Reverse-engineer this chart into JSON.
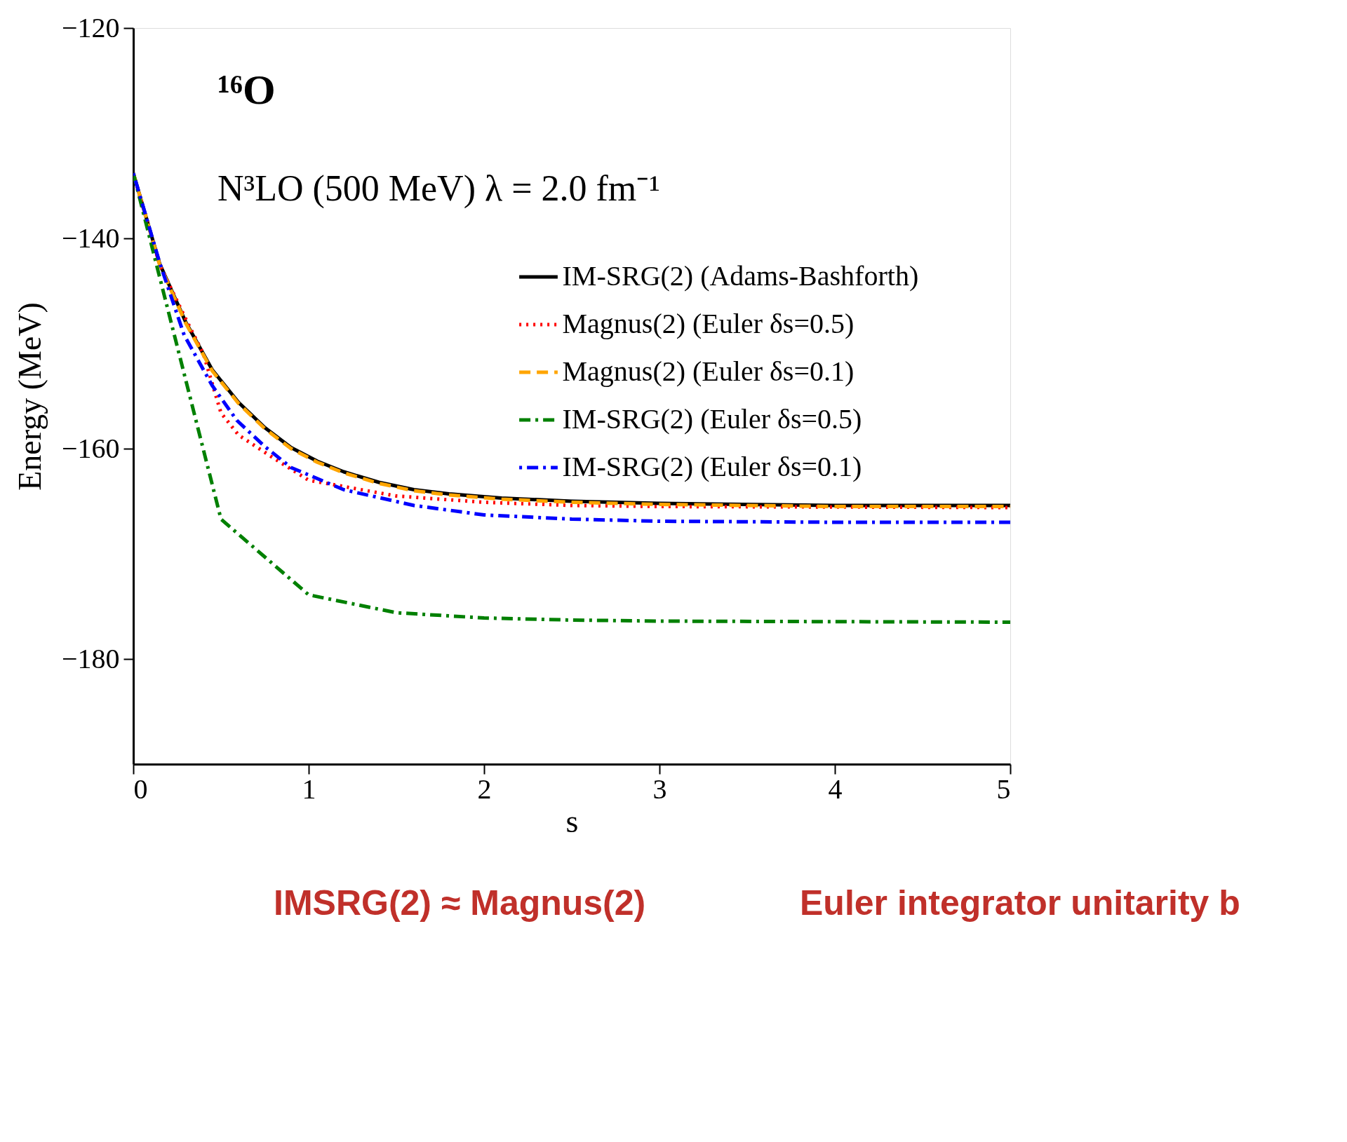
{
  "chart_data": {
    "type": "line",
    "xlabel": "s",
    "ylabel": "Energy (MeV)",
    "annotations": [
      "¹⁶O",
      "N³LO (500 MeV)  λ = 2.0 fm⁻¹",
      "IMSRG(2) ≈ Magnus(2)",
      "Euler integrator unitarity b"
    ],
    "xlim": [
      0,
      5
    ],
    "xticks": [
      0,
      1,
      2,
      3,
      4,
      5
    ],
    "ylim": [
      -190,
      -120
    ],
    "yticks": [
      -180,
      -160,
      -140,
      -120
    ],
    "grid": false,
    "legend": "right",
    "marker": "none",
    "series": [
      {
        "name": "IM-SRG(2) (Adams-Bashforth)",
        "color": "#000000",
        "line_style": "solid",
        "x": [
          0,
          0.15,
          0.3,
          0.45,
          0.6,
          0.75,
          0.9,
          1.05,
          1.2,
          1.4,
          1.6,
          1.8,
          2.1,
          2.5,
          3,
          4,
          5
        ],
        "values": [
          -133.8,
          -142.4,
          -148.0,
          -152.5,
          -155.6,
          -158.0,
          -159.9,
          -161.2,
          -162.2,
          -163.2,
          -163.9,
          -164.3,
          -164.7,
          -165.0,
          -165.2,
          -165.4,
          -165.4
        ]
      },
      {
        "name": "Magnus(2) (Euler δs=0.5)",
        "color": "#ff0000",
        "line_style": "dotted",
        "x": [
          0,
          0.15,
          0.3,
          0.4,
          0.5,
          0.6,
          0.8,
          1.0,
          1.5,
          2,
          2.5,
          3,
          5
        ],
        "values": [
          -133.8,
          -142.5,
          -147.7,
          -151.0,
          -156.6,
          -158.7,
          -160.9,
          -163.0,
          -164.5,
          -165.1,
          -165.4,
          -165.5,
          -165.6
        ]
      },
      {
        "name": "Magnus(2) (Euler δs=0.1)",
        "color": "#ffa500",
        "line_style": "dashed",
        "x": [
          0,
          0.15,
          0.3,
          0.45,
          0.6,
          0.75,
          0.9,
          1.05,
          1.2,
          1.4,
          1.6,
          1.8,
          2.1,
          2.5,
          3,
          4,
          5
        ],
        "values": [
          -133.8,
          -142.5,
          -148.1,
          -152.6,
          -155.7,
          -158.1,
          -160.0,
          -161.3,
          -162.3,
          -163.3,
          -164.0,
          -164.4,
          -164.8,
          -165.1,
          -165.3,
          -165.5,
          -165.5
        ]
      },
      {
        "name": "IM-SRG(2) (Euler δs=0.5)",
        "color": "#008000",
        "line_style": "dashdot",
        "x": [
          0,
          0.5,
          1,
          1.5,
          2,
          2.5,
          3,
          5
        ],
        "values": [
          -133.8,
          -166.7,
          -173.9,
          -175.6,
          -176.1,
          -176.3,
          -176.4,
          -176.5
        ]
      },
      {
        "name": "IM-SRG(2) (Euler δs=0.1)",
        "color": "#0000ff",
        "line_style": "dotdash",
        "x": [
          0,
          0.15,
          0.29,
          0.45,
          0.59,
          0.75,
          0.9,
          1.2,
          1.6,
          2.0,
          2.5,
          3,
          4,
          5
        ],
        "values": [
          -133.8,
          -142.3,
          -149.2,
          -154.0,
          -157.3,
          -159.8,
          -161.8,
          -163.9,
          -165.4,
          -166.3,
          -166.7,
          -166.9,
          -167.0,
          -167.0
        ]
      }
    ]
  }
}
